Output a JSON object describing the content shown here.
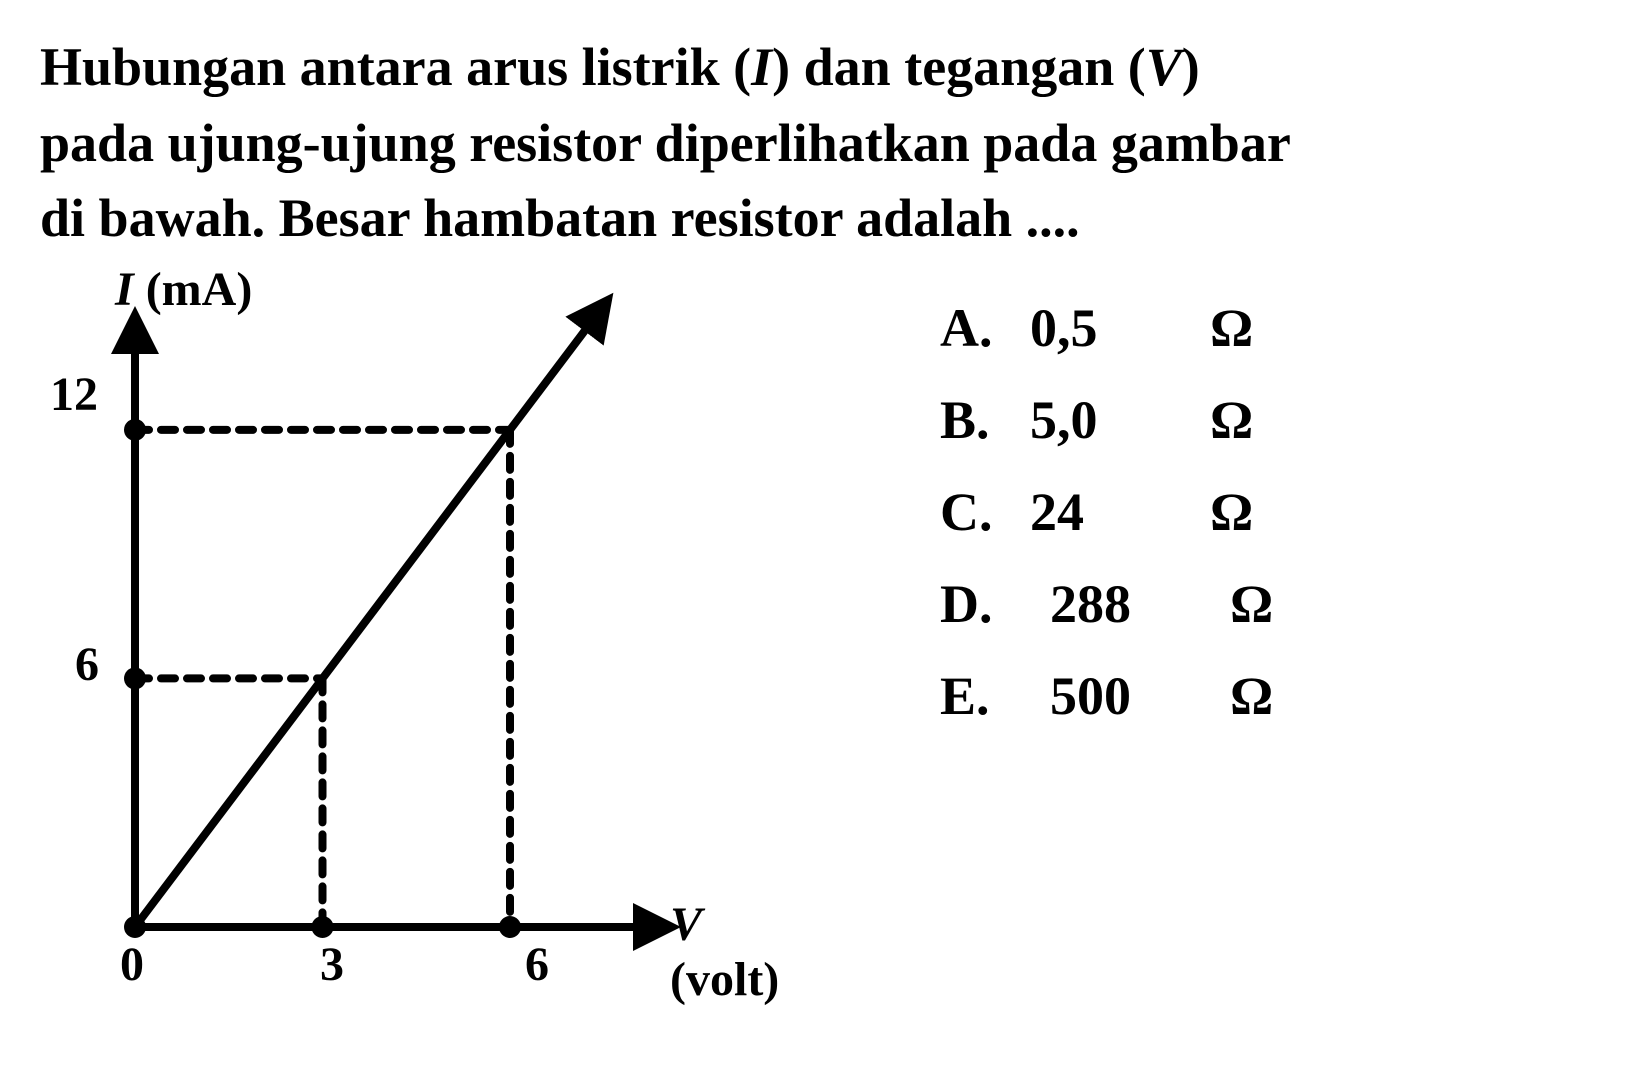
{
  "question": {
    "line1_pre": "Hubungan antara arus listrik (",
    "line1_var1": "I",
    "line1_mid": ") dan tegangan (",
    "line1_var2": "V",
    "line1_post": ")",
    "line2": "pada ujung-ujung resistor diperlihatkan pada gambar",
    "line3": "di bawah. Besar hambatan resistor adalah ...."
  },
  "chart": {
    "type": "line",
    "y_axis_label_var": "I",
    "y_axis_label_unit": " (mA)",
    "x_axis_label_var": "V",
    "x_axis_label_unit": " (volt)",
    "x_ticks": [
      "0",
      "3",
      "6"
    ],
    "y_ticks": [
      "6",
      "12"
    ],
    "x_tick_vals": [
      0,
      3,
      6
    ],
    "y_tick_vals": [
      6,
      12
    ],
    "xlim": [
      0,
      8
    ],
    "ylim": [
      0,
      14
    ],
    "data_line": {
      "x0": 0,
      "y0": 0,
      "x1": 7.5,
      "y1": 15
    },
    "guide_points": [
      {
        "x": 3,
        "y": 6
      },
      {
        "x": 6,
        "y": 12
      }
    ],
    "colors": {
      "axis": "#000000",
      "line": "#000000",
      "guide": "#000000",
      "background": "#ffffff"
    },
    "line_width": 8,
    "axis_width": 8,
    "guide_dash": "14,12",
    "guide_width": 8,
    "dot_radius": 11,
    "arrow_size": 28
  },
  "options": [
    {
      "letter": "A.",
      "value": "0,5",
      "unit": "Ω"
    },
    {
      "letter": "B.",
      "value": "5,0",
      "unit": "Ω"
    },
    {
      "letter": "C.",
      "value": "24",
      "unit": "Ω"
    },
    {
      "letter": "D.",
      "value": "288",
      "unit": "Ω"
    },
    {
      "letter": "E.",
      "value": "500",
      "unit": "Ω"
    }
  ]
}
